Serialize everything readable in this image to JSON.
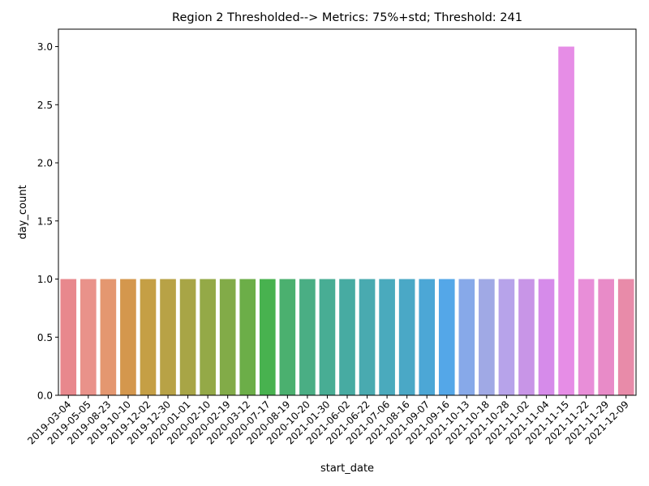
{
  "chart_data": {
    "type": "bar",
    "title": "Region 2 Thresholded--> Metrics: 75%+std; Threshold: 241",
    "xlabel": "start_date",
    "ylabel": "day_count",
    "ylim": [
      0,
      3.15
    ],
    "yticks": [
      0.0,
      0.5,
      1.0,
      1.5,
      2.0,
      2.5,
      3.0
    ],
    "ytick_labels": [
      "0.0",
      "0.5",
      "1.0",
      "1.5",
      "2.0",
      "2.5",
      "3.0"
    ],
    "grid": false,
    "categories": [
      "2019-03-04",
      "2019-05-05",
      "2019-08-23",
      "2019-10-10",
      "2019-12-02",
      "2019-12-30",
      "2020-01-01",
      "2020-02-10",
      "2020-02-19",
      "2020-03-12",
      "2020-07-17",
      "2020-08-19",
      "2020-10-20",
      "2021-01-30",
      "2021-06-02",
      "2021-06-22",
      "2021-07-06",
      "2021-08-16",
      "2021-09-07",
      "2021-09-16",
      "2021-10-13",
      "2021-10-18",
      "2021-10-28",
      "2021-11-02",
      "2021-11-04",
      "2021-11-15",
      "2021-11-22",
      "2021-11-29",
      "2021-12-09"
    ],
    "values": [
      1,
      1,
      1,
      1,
      1,
      1,
      1,
      1,
      1,
      1,
      1,
      1,
      1,
      1,
      1,
      1,
      1,
      1,
      1,
      1,
      1,
      1,
      1,
      1,
      1,
      3,
      1,
      1,
      1
    ],
    "colors": [
      "#e8888d",
      "#e9928a",
      "#e49770",
      "#d4974d",
      "#c59f45",
      "#b8a246",
      "#a8a546",
      "#94a947",
      "#82ab48",
      "#6cae48",
      "#48b24f",
      "#4bb06f",
      "#4aae84",
      "#48ad94",
      "#47aba2",
      "#49aab0",
      "#4aaabd",
      "#4aa8c6",
      "#4ca7d6",
      "#54a7e8",
      "#87a9e9",
      "#a0a9e5",
      "#b7a3ea",
      "#c895e7",
      "#d68bea",
      "#e68de6",
      "#e88ed8",
      "#e88bc8",
      "#e88ba9"
    ]
  }
}
